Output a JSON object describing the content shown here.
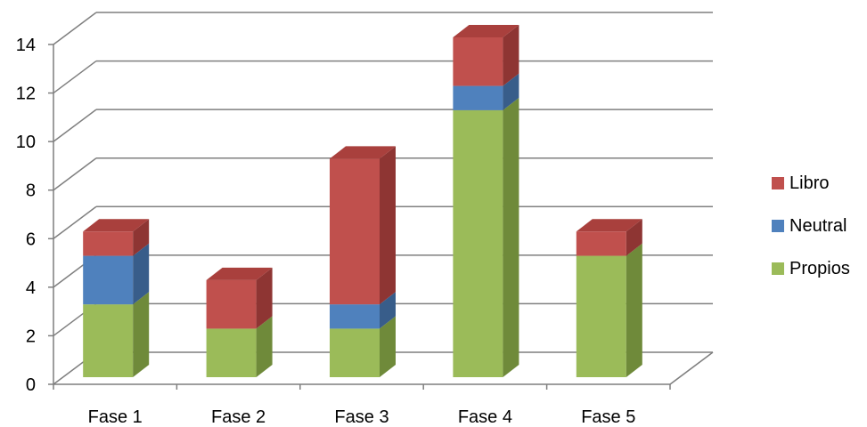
{
  "chart_data": {
    "type": "bar",
    "stacked": true,
    "three_d": true,
    "categories": [
      "Fase 1",
      "Fase 2",
      "Fase 3",
      "Fase 4",
      "Fase 5"
    ],
    "series": [
      {
        "name": "Propios",
        "values": [
          3,
          2,
          2,
          11,
          5
        ],
        "color": "#9bbb59",
        "side": "#6f8a3a",
        "top": "#b9d17f"
      },
      {
        "name": "Neutral",
        "values": [
          2,
          0,
          1,
          1,
          0
        ],
        "color": "#4f81bd",
        "side": "#385d8a",
        "top": "#7aa1d2"
      },
      {
        "name": "Libro",
        "values": [
          1,
          2,
          6,
          2,
          1
        ],
        "color": "#c0504d",
        "side": "#8e3533",
        "top": "#a9403d"
      }
    ],
    "ylim": [
      0,
      14
    ],
    "yticks": [
      "0",
      "2",
      "4",
      "6",
      "8",
      "10",
      "12",
      "14"
    ],
    "grid": true,
    "legend_position": "right",
    "title": "",
    "xlabel": "",
    "ylabel": ""
  }
}
